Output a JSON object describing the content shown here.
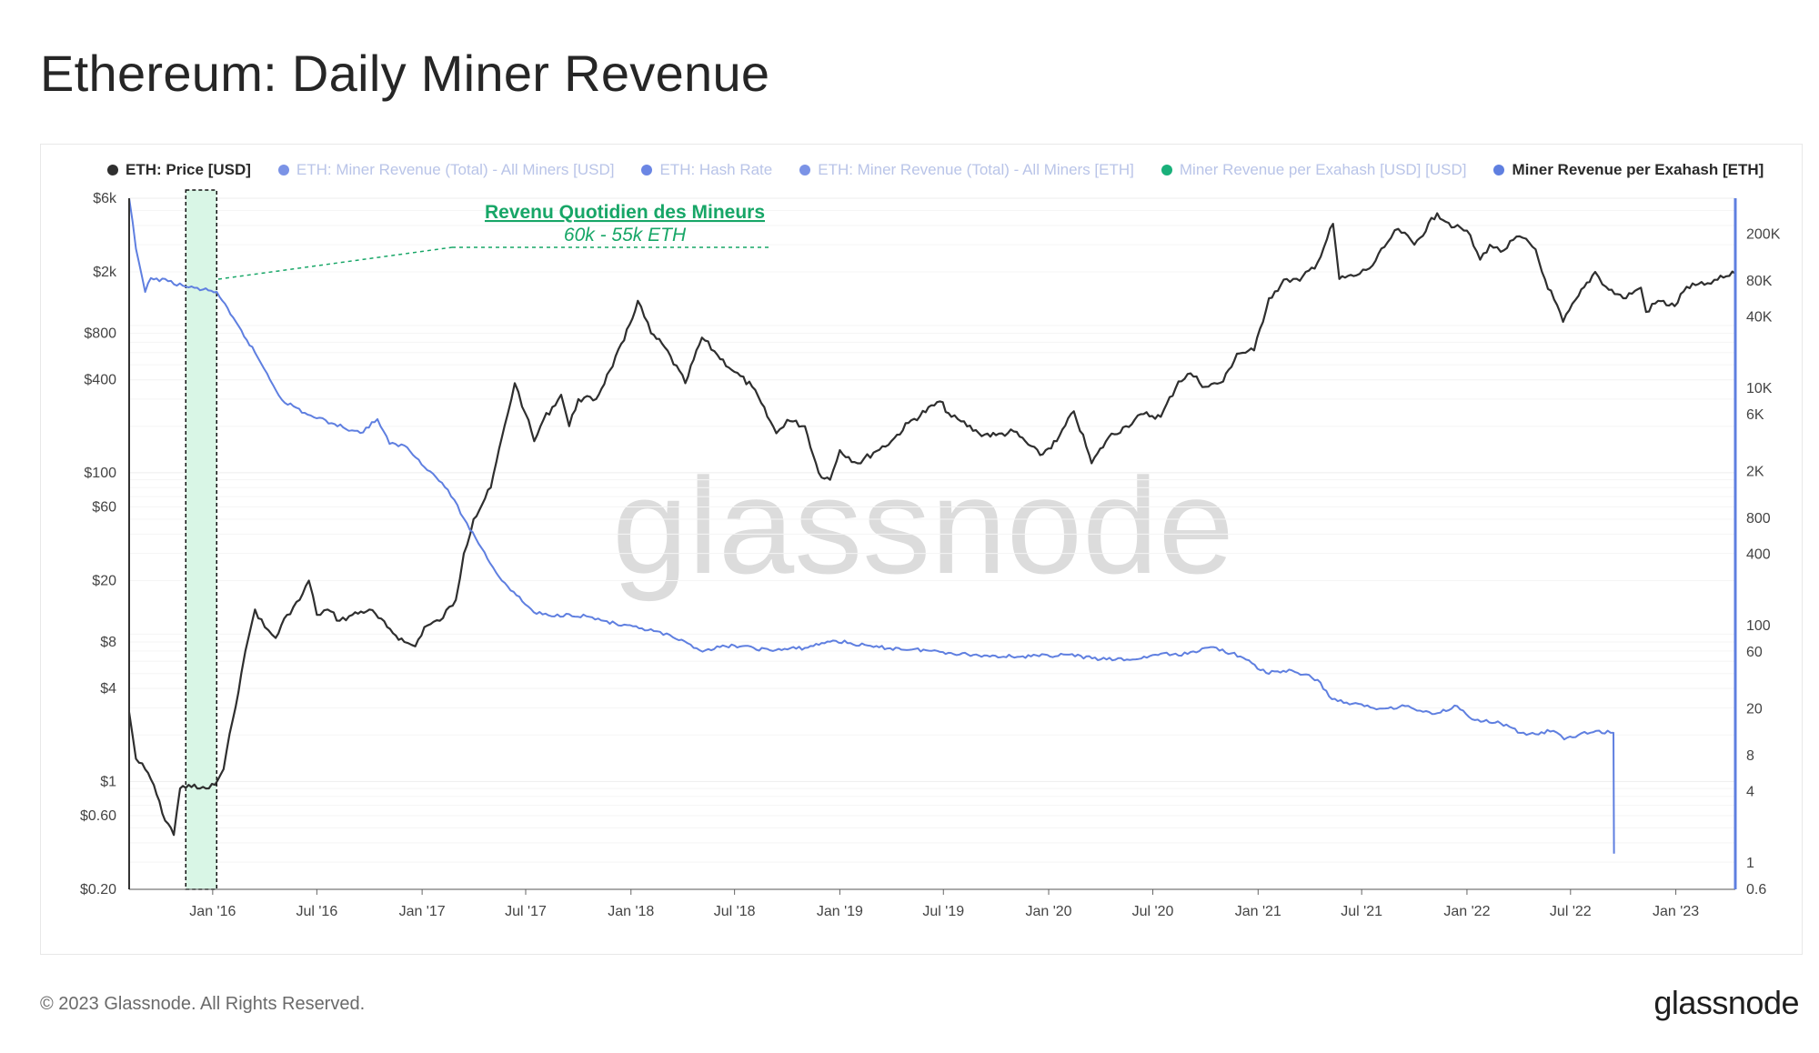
{
  "page": {
    "title": "Ethereum: Daily Miner Revenue"
  },
  "footer": {
    "copyright": "© 2023 Glassnode. All Rights Reserved.",
    "logo": "glassnode"
  },
  "watermark": "glassnode",
  "colors": {
    "price": "#2f2f2f",
    "revenue": "#5f7fe0",
    "highlight_fill": "#d9f6e6",
    "annotation": "#17a667"
  },
  "legend": [
    {
      "label": "ETH: Price [USD]",
      "color": "#2f2f2f",
      "active": true
    },
    {
      "label": "ETH: Miner Revenue (Total) - All Miners [USD]",
      "color": "#7b93e6",
      "active": false
    },
    {
      "label": "ETH: Hash Rate",
      "color": "#6b86e4",
      "active": false
    },
    {
      "label": "ETH: Miner Revenue (Total) - All Miners [ETH]",
      "color": "#7b93e6",
      "active": false
    },
    {
      "label": "Miner Revenue per Exahash [USD] [USD]",
      "color": "#19b07a",
      "active": false
    },
    {
      "label": "Miner Revenue per Exahash [ETH]",
      "color": "#5f7fe0",
      "active": true
    }
  ],
  "annotation": {
    "title": "Revenu Quotidien des Mineurs",
    "subtitle": "60k - 55k ETH"
  },
  "chart_data": {
    "type": "line",
    "scale": "log",
    "x_ticks": [
      "Jan '16",
      "Jul '16",
      "Jan '17",
      "Jul '17",
      "Jan '18",
      "Jul '18",
      "Jan '19",
      "Jul '19",
      "Jan '20",
      "Jul '20",
      "Jan '21",
      "Jul '21",
      "Jan '22",
      "Jul '22",
      "Jan '23"
    ],
    "y_left": {
      "label": "ETH: Price [USD]",
      "ticks": [
        "$6k",
        "$2k",
        "$800",
        "$400",
        "$100",
        "$60",
        "$20",
        "$8",
        "$4",
        "$1",
        "$0.60",
        "$0.20"
      ],
      "tick_values": [
        6000,
        2000,
        800,
        400,
        100,
        60,
        20,
        8,
        4,
        1,
        0.6,
        0.2
      ],
      "range": [
        0.2,
        6000
      ]
    },
    "y_right": {
      "label": "Miner Revenue per Exahash [ETH]",
      "ticks": [
        "200K",
        "80K",
        "40K",
        "10K",
        "6K",
        "2K",
        "800",
        "400",
        "100",
        "60",
        "20",
        "8",
        "4",
        "1",
        "0.6"
      ],
      "tick_values": [
        200000,
        80000,
        40000,
        10000,
        6000,
        2000,
        800,
        400,
        100,
        60,
        20,
        8,
        4,
        1,
        0.6
      ],
      "range": [
        0.6,
        400000
      ]
    },
    "highlight": {
      "start": "2015-11-15",
      "end": "2016-01-08"
    },
    "series": [
      {
        "name": "ETH: Price [USD]",
        "axis": "left",
        "x": [
          "2015-08-08",
          "2015-08-20",
          "2015-09-05",
          "2015-09-20",
          "2015-10-05",
          "2015-10-20",
          "2015-10-25",
          "2015-11-05",
          "2015-11-20",
          "2015-12-05",
          "2015-12-20",
          "2016-01-05",
          "2016-01-20",
          "2016-02-05",
          "2016-02-20",
          "2016-03-05",
          "2016-03-15",
          "2016-04-01",
          "2016-04-20",
          "2016-05-10",
          "2016-06-01",
          "2016-06-17",
          "2016-07-01",
          "2016-07-20",
          "2016-08-10",
          "2016-09-01",
          "2016-10-01",
          "2016-11-01",
          "2016-12-01",
          "2016-12-20",
          "2017-01-05",
          "2017-02-01",
          "2017-03-01",
          "2017-03-15",
          "2017-04-01",
          "2017-05-01",
          "2017-05-25",
          "2017-06-12",
          "2017-07-01",
          "2017-07-16",
          "2017-08-01",
          "2017-09-01",
          "2017-09-15",
          "2017-10-01",
          "2017-11-01",
          "2017-11-25",
          "2017-12-20",
          "2018-01-13",
          "2018-02-05",
          "2018-03-01",
          "2018-04-06",
          "2018-05-05",
          "2018-06-01",
          "2018-07-01",
          "2018-08-01",
          "2018-09-12",
          "2018-10-01",
          "2018-11-01",
          "2018-11-25",
          "2018-12-15",
          "2019-01-01",
          "2019-02-01",
          "2019-03-01",
          "2019-04-01",
          "2019-05-01",
          "2019-06-25",
          "2019-07-15",
          "2019-08-01",
          "2019-09-01",
          "2019-10-01",
          "2019-11-01",
          "2019-12-17",
          "2020-01-15",
          "2020-02-14",
          "2020-03-12",
          "2020-03-16",
          "2020-04-15",
          "2020-05-15",
          "2020-06-15",
          "2020-07-15",
          "2020-08-15",
          "2020-09-05",
          "2020-10-01",
          "2020-11-01",
          "2020-11-25",
          "2020-12-25",
          "2021-01-20",
          "2021-02-20",
          "2021-03-15",
          "2021-04-15",
          "2021-05-12",
          "2021-05-23",
          "2021-06-22",
          "2021-07-20",
          "2021-08-15",
          "2021-09-03",
          "2021-10-01",
          "2021-11-10",
          "2021-12-10",
          "2022-01-01",
          "2022-01-24",
          "2022-02-10",
          "2022-03-01",
          "2022-04-03",
          "2022-05-01",
          "2022-05-12",
          "2022-06-18",
          "2022-07-15",
          "2022-08-13",
          "2022-09-01",
          "2022-10-01",
          "2022-11-01",
          "2022-11-10",
          "2022-12-01",
          "2022-12-30",
          "2023-01-20",
          "2023-02-20",
          "2023-03-15",
          "2023-04-15"
        ],
        "values": [
          2.8,
          1.4,
          1.2,
          0.95,
          0.62,
          0.5,
          0.45,
          0.9,
          0.95,
          0.9,
          0.9,
          0.95,
          1.2,
          2.5,
          5,
          9,
          13,
          10,
          8.5,
          12,
          15,
          20,
          12,
          13,
          11,
          12,
          13,
          10,
          8,
          7.5,
          10,
          11,
          15,
          30,
          50,
          80,
          200,
          380,
          240,
          160,
          220,
          320,
          200,
          300,
          300,
          460,
          720,
          1300,
          800,
          650,
          380,
          750,
          580,
          450,
          360,
          180,
          220,
          200,
          100,
          90,
          140,
          115,
          135,
          160,
          210,
          290,
          230,
          215,
          180,
          175,
          185,
          130,
          160,
          250,
          130,
          115,
          170,
          200,
          240,
          230,
          390,
          440,
          360,
          390,
          590,
          620,
          1350,
          1800,
          1750,
          2300,
          4100,
          1800,
          1900,
          2200,
          3100,
          3800,
          3000,
          4800,
          3900,
          3700,
          2400,
          3000,
          2700,
          3400,
          2800,
          2000,
          950,
          1400,
          2000,
          1600,
          1350,
          1580,
          1100,
          1300,
          1200,
          1600,
          1650,
          1780,
          1950
        ]
      },
      {
        "name": "Miner Revenue per Exahash [ETH]",
        "axis": "right",
        "x": [
          "2015-08-08",
          "2015-08-20",
          "2015-09-05",
          "2015-09-15",
          "2015-10-15",
          "2015-11-15",
          "2015-12-15",
          "2016-01-08",
          "2016-02-01",
          "2016-03-15",
          "2016-05-01",
          "2016-06-15",
          "2016-08-01",
          "2016-09-15",
          "2016-10-15",
          "2016-11-05",
          "2016-12-01",
          "2017-01-15",
          "2017-02-15",
          "2017-03-15",
          "2017-04-15",
          "2017-05-15",
          "2017-06-15",
          "2017-07-15",
          "2017-08-15",
          "2017-09-15",
          "2017-10-15",
          "2017-11-15",
          "2017-12-15",
          "2018-01-15",
          "2018-02-10",
          "2018-03-15",
          "2018-05-01",
          "2018-07-01",
          "2018-09-01",
          "2018-11-01",
          "2018-12-20",
          "2019-03-01",
          "2019-06-01",
          "2019-09-01",
          "2019-12-01",
          "2020-02-01",
          "2020-04-01",
          "2020-06-01",
          "2020-07-15",
          "2020-08-15",
          "2020-09-05",
          "2020-10-15",
          "2020-12-01",
          "2021-01-15",
          "2021-03-01",
          "2021-04-15",
          "2021-05-10",
          "2021-06-15",
          "2021-08-01",
          "2021-09-15",
          "2021-11-01",
          "2021-12-15",
          "2022-01-15",
          "2022-03-01",
          "2022-04-15",
          "2022-06-01",
          "2022-06-20",
          "2022-07-15",
          "2022-08-15",
          "2022-09-14",
          "2022-09-15"
        ],
        "values": [
          400000,
          150000,
          65000,
          85000,
          80000,
          72000,
          68000,
          65000,
          42000,
          20000,
          8000,
          6000,
          5000,
          4200,
          5500,
          3400,
          3300,
          2000,
          1400,
          800,
          450,
          260,
          180,
          130,
          120,
          125,
          120,
          110,
          100,
          95,
          90,
          80,
          62,
          68,
          62,
          65,
          75,
          66,
          62,
          56,
          55,
          57,
          52,
          52,
          58,
          56,
          60,
          66,
          55,
          40,
          42,
          35,
          24,
          22,
          20,
          21,
          18,
          21,
          16,
          15,
          12,
          13,
          11,
          12,
          13,
          12.5,
          1.2
        ]
      }
    ]
  }
}
